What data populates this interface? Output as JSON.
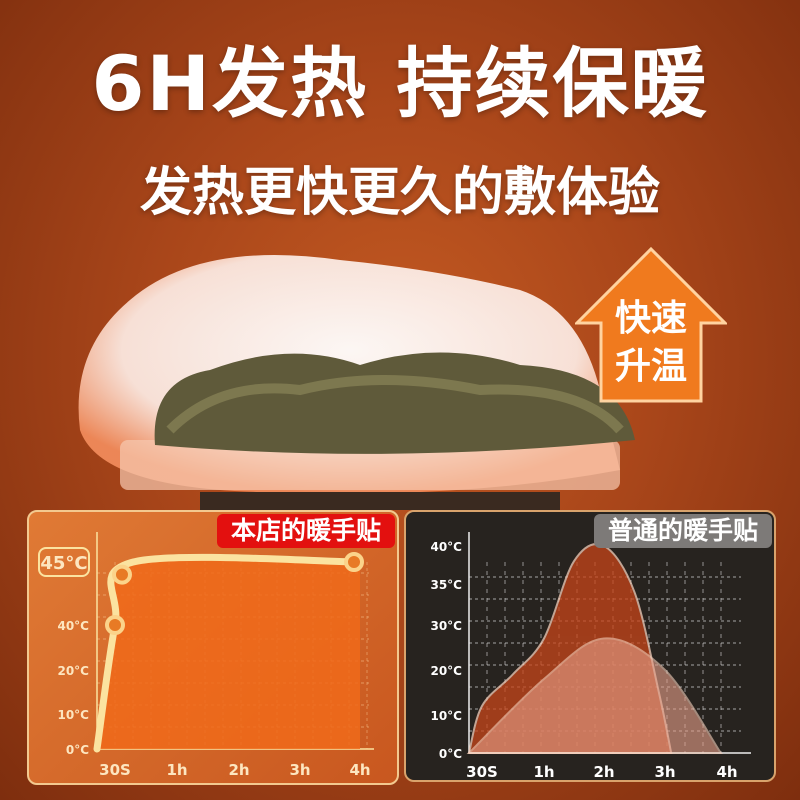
{
  "headline": "6H发热  持续保暖",
  "subheadline": "发热更快更久的敷体验",
  "badge": {
    "line1": "快速",
    "line2": "升温",
    "color": "#f07a1e"
  },
  "chart_data": [
    {
      "type": "line",
      "title": "本店的暖手贴",
      "highlight_label": "45°C",
      "x_ticks": [
        "30S",
        "1h",
        "2h",
        "3h",
        "4h"
      ],
      "y_ticks": [
        "0°C",
        "10°C",
        "20°C",
        "40°C"
      ],
      "series": [
        {
          "points": [
            [
              0,
              0
            ],
            [
              0.0083,
              40
            ],
            [
              0.3,
              45
            ],
            [
              4,
              45
            ]
          ],
          "color": "#fbe3a0"
        }
      ]
    },
    {
      "type": "area",
      "title": "普通的暖手贴",
      "x_ticks": [
        "30S",
        "1h",
        "2h",
        "3h",
        "4h"
      ],
      "y_ticks": [
        "0°C",
        "10°C",
        "20°C",
        "30°C",
        "35°C",
        "40°C"
      ],
      "series": [
        {
          "points": [
            [
              0,
              0
            ],
            [
              0.0083,
              12
            ],
            [
              0.5,
              19
            ],
            [
              1,
              27
            ],
            [
              1.5,
              38
            ],
            [
              2,
              41
            ],
            [
              2.5,
              34
            ],
            [
              2.9,
              15
            ],
            [
              3.1,
              0
            ]
          ],
          "color": "#c8461a"
        },
        {
          "points": [
            [
              0,
              0
            ],
            [
              1,
              18
            ],
            [
              2,
              27
            ],
            [
              3,
              20
            ],
            [
              3.9,
              0
            ]
          ],
          "color": "#e8a08a"
        }
      ]
    }
  ]
}
